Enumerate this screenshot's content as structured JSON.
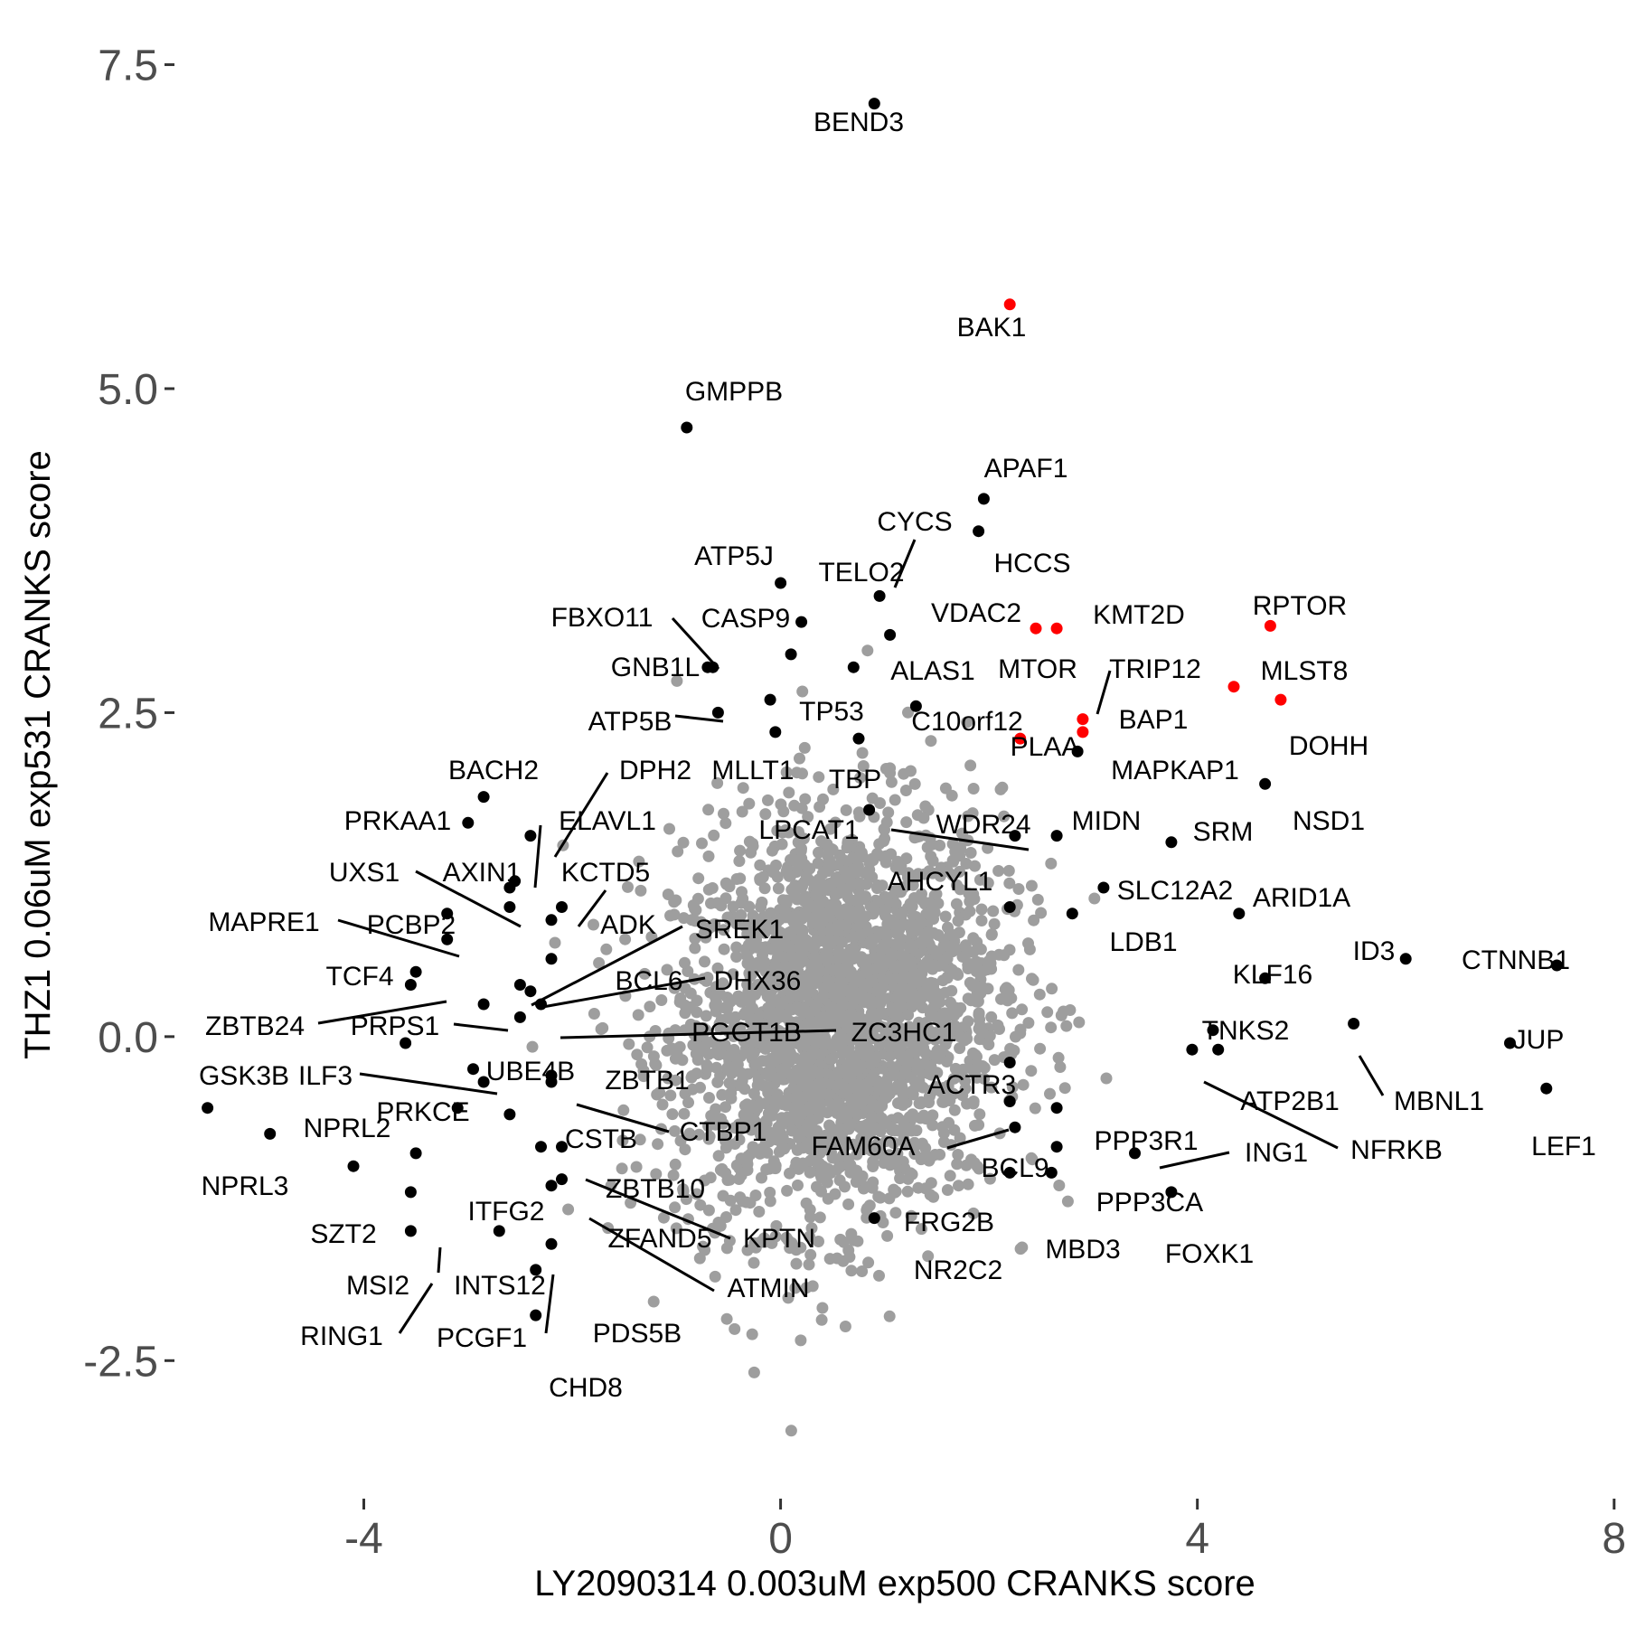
{
  "chart_data": {
    "type": "scatter",
    "title": "",
    "xlabel": "LY2090314 0.003uM exp500 CRANKS score",
    "ylabel": "THZ1 0.06uM exp531 CRANKS score",
    "xlim": [
      -5.8,
      7.95
    ],
    "ylim": [
      -3.3,
      7.72
    ],
    "xticks": [
      {
        "value": -4,
        "label": "-4"
      },
      {
        "value": 0,
        "label": "0"
      },
      {
        "value": 4,
        "label": "4"
      },
      {
        "value": 8,
        "label": "8"
      }
    ],
    "yticks": [
      {
        "value": -2.5,
        "label": "-2.5"
      },
      {
        "value": 0.0,
        "label": "0.0"
      },
      {
        "value": 2.5,
        "label": "2.5"
      },
      {
        "value": 5.0,
        "label": "5.0"
      },
      {
        "value": 7.5,
        "label": "7.5"
      }
    ],
    "grid": false,
    "legend": "none",
    "colors": {
      "background": "#ffffff",
      "highlight": "#ff0000",
      "hit": "#000000",
      "background_points": "#9e9e9e"
    },
    "labeled_points": [
      {
        "gene": "BEND3",
        "x": 0.9,
        "y": 7.2,
        "color": "#000000"
      },
      {
        "gene": "BAK1",
        "x": 2.2,
        "y": 5.65,
        "color": "#ff0000"
      },
      {
        "gene": "GMPPB",
        "x": -0.9,
        "y": 4.7,
        "color": "#000000"
      },
      {
        "gene": "APAF1",
        "x": 1.95,
        "y": 4.15,
        "color": "#000000"
      },
      {
        "gene": "HCCS",
        "x": 1.9,
        "y": 3.9,
        "color": "#000000"
      },
      {
        "gene": "CYCS",
        "x": 0.95,
        "y": 3.4,
        "color": "#000000"
      },
      {
        "gene": "ATP5J",
        "x": 0.0,
        "y": 3.5,
        "color": "#000000"
      },
      {
        "gene": "TELO2",
        "x": 0.2,
        "y": 3.2,
        "color": "#000000"
      },
      {
        "gene": "VDAC2",
        "x": 1.05,
        "y": 3.1,
        "color": "#000000"
      },
      {
        "gene": "KMT2D",
        "x": 2.65,
        "y": 3.15,
        "color": "#ff0000"
      },
      {
        "gene": "MTOR",
        "x": 2.45,
        "y": 3.15,
        "color": "#ff0000"
      },
      {
        "gene": "RPTOR",
        "x": 4.7,
        "y": 3.17,
        "color": "#ff0000"
      },
      {
        "gene": "MLST8",
        "x": 4.35,
        "y": 2.7,
        "color": "#ff0000"
      },
      {
        "gene": "DOHH",
        "x": 4.8,
        "y": 2.6,
        "color": "#ff0000"
      },
      {
        "gene": "FBXO11",
        "x": -0.7,
        "y": 2.85,
        "color": "#000000"
      },
      {
        "gene": "CASP9",
        "x": 0.1,
        "y": 2.95,
        "color": "#000000"
      },
      {
        "gene": "GNB1L",
        "x": -0.65,
        "y": 2.85,
        "color": "#000000"
      },
      {
        "gene": "ALAS1",
        "x": 0.7,
        "y": 2.85,
        "color": "#000000"
      },
      {
        "gene": "TRIP12",
        "x": 2.9,
        "y": 2.45,
        "color": "#ff0000"
      },
      {
        "gene": "BAP1",
        "x": 2.9,
        "y": 2.35,
        "color": "#ff0000"
      },
      {
        "gene": "TP53",
        "x": -0.1,
        "y": 2.6,
        "color": "#000000"
      },
      {
        "gene": "C10orf12",
        "x": 1.3,
        "y": 2.55,
        "color": "#000000"
      },
      {
        "gene": "PLAA",
        "x": 2.3,
        "y": 2.3,
        "color": "#ff0000"
      },
      {
        "gene": "MAPKAP1",
        "x": 2.85,
        "y": 2.2,
        "color": "#000000"
      },
      {
        "gene": "ATP5B",
        "x": -0.6,
        "y": 2.5,
        "color": "#000000"
      },
      {
        "gene": "MLLT1",
        "x": -0.05,
        "y": 2.35,
        "color": "#000000"
      },
      {
        "gene": "TBP",
        "x": 0.75,
        "y": 2.3,
        "color": "#000000"
      },
      {
        "gene": "BACH2",
        "x": -2.85,
        "y": 1.85,
        "color": "#000000"
      },
      {
        "gene": "DPH2",
        "x": -2.4,
        "y": 1.55,
        "color": "#000000"
      },
      {
        "gene": "NSD1",
        "x": 4.65,
        "y": 1.95,
        "color": "#000000"
      },
      {
        "gene": "PRKAA1",
        "x": -3.0,
        "y": 1.65,
        "color": "#000000"
      },
      {
        "gene": "ELAVL1",
        "x": -2.55,
        "y": 1.2,
        "color": "#000000"
      },
      {
        "gene": "LPCAT1",
        "x": 0.85,
        "y": 1.75,
        "color": "#000000"
      },
      {
        "gene": "WDR24",
        "x": 2.25,
        "y": 1.55,
        "color": "#000000"
      },
      {
        "gene": "MIDN",
        "x": 2.65,
        "y": 1.55,
        "color": "#000000"
      },
      {
        "gene": "SRM",
        "x": 3.75,
        "y": 1.5,
        "color": "#000000"
      },
      {
        "gene": "UXS1",
        "x": -2.6,
        "y": 1.0,
        "color": "#000000"
      },
      {
        "gene": "AXIN1",
        "x": -2.6,
        "y": 1.15,
        "color": "#000000"
      },
      {
        "gene": "KCTD5",
        "x": -2.1,
        "y": 1.0,
        "color": "#000000"
      },
      {
        "gene": "AHCYL1",
        "x": 2.2,
        "y": 1.0,
        "color": "#000000"
      },
      {
        "gene": "SLC12A2",
        "x": 3.1,
        "y": 1.15,
        "color": "#000000"
      },
      {
        "gene": "ARID1A",
        "x": 4.4,
        "y": 0.95,
        "color": "#000000"
      },
      {
        "gene": "MAPRE1",
        "x": -3.2,
        "y": 0.75,
        "color": "#000000"
      },
      {
        "gene": "PCBP2",
        "x": -3.2,
        "y": 0.95,
        "color": "#000000"
      },
      {
        "gene": "ADK",
        "x": -2.2,
        "y": 0.9,
        "color": "#000000"
      },
      {
        "gene": "SREK1",
        "x": -2.5,
        "y": 0.4,
        "color": "#000000"
      },
      {
        "gene": "LDB1",
        "x": 2.8,
        "y": 0.95,
        "color": "#000000"
      },
      {
        "gene": "ID3",
        "x": 6.0,
        "y": 0.6,
        "color": "#000000"
      },
      {
        "gene": "CTNNB1",
        "x": 7.45,
        "y": 0.55,
        "color": "#000000"
      },
      {
        "gene": "TCF4",
        "x": -3.5,
        "y": 0.5,
        "color": "#000000"
      },
      {
        "gene": "BCL6",
        "x": -2.2,
        "y": 0.6,
        "color": "#000000"
      },
      {
        "gene": "DHX36",
        "x": -2.4,
        "y": 0.35,
        "color": "#000000"
      },
      {
        "gene": "KLF16",
        "x": 4.65,
        "y": 0.45,
        "color": "#000000"
      },
      {
        "gene": "ZBTB24",
        "x": -3.55,
        "y": 0.4,
        "color": "#000000"
      },
      {
        "gene": "PRPS1",
        "x": -2.85,
        "y": 0.25,
        "color": "#000000"
      },
      {
        "gene": "PGGT1B",
        "x": -2.3,
        "y": 0.25,
        "color": "#000000"
      },
      {
        "gene": "ZC3HC1",
        "x": -2.5,
        "y": 0.15,
        "color": "#000000"
      },
      {
        "gene": "TNKS2",
        "x": 4.15,
        "y": 0.05,
        "color": "#000000"
      },
      {
        "gene": "JUP",
        "x": 7.0,
        "y": -0.05,
        "color": "#000000"
      },
      {
        "gene": "MBNL1",
        "x": 5.5,
        "y": 0.1,
        "color": "#000000"
      },
      {
        "gene": "GSK3B",
        "x": -3.6,
        "y": -0.05,
        "color": "#000000"
      },
      {
        "gene": "ILF3",
        "x": -2.95,
        "y": -0.25,
        "color": "#000000"
      },
      {
        "gene": "UBE4B",
        "x": -2.85,
        "y": -0.35,
        "color": "#000000"
      },
      {
        "gene": "ZBTB1",
        "x": -2.2,
        "y": -0.3,
        "color": "#000000"
      },
      {
        "gene": "ACTR3",
        "x": 2.2,
        "y": -0.2,
        "color": "#000000"
      },
      {
        "gene": "ATP2B1",
        "x": 4.2,
        "y": -0.1,
        "color": "#000000"
      },
      {
        "gene": "NFRKB",
        "x": 3.95,
        "y": -0.1,
        "color": "#000000"
      },
      {
        "gene": "PRKCE",
        "x": -3.1,
        "y": -0.55,
        "color": "#000000"
      },
      {
        "gene": "NPRL2",
        "x": -5.5,
        "y": -0.55,
        "color": "#000000"
      },
      {
        "gene": "CTBP1",
        "x": -2.2,
        "y": -0.35,
        "color": "#000000"
      },
      {
        "gene": "CSTB",
        "x": -2.6,
        "y": -0.6,
        "color": "#000000"
      },
      {
        "gene": "FAM60A",
        "x": 2.2,
        "y": -0.5,
        "color": "#000000"
      },
      {
        "gene": "LEF1",
        "x": 7.35,
        "y": -0.4,
        "color": "#000000"
      },
      {
        "gene": "PPP3R1",
        "x": 2.65,
        "y": -0.55,
        "color": "#000000"
      },
      {
        "gene": "ING1",
        "x": 3.4,
        "y": -0.9,
        "color": "#000000"
      },
      {
        "gene": "NPRL3",
        "x": -4.9,
        "y": -0.75,
        "color": "#000000"
      },
      {
        "gene": "BCL9",
        "x": 2.25,
        "y": -0.7,
        "color": "#000000"
      },
      {
        "gene": "ZBTB10",
        "x": -2.3,
        "y": -0.85,
        "color": "#000000"
      },
      {
        "gene": "PPP3CA",
        "x": 2.65,
        "y": -0.85,
        "color": "#000000"
      },
      {
        "gene": "ITFG2",
        "x": -3.5,
        "y": -0.9,
        "color": "#000000"
      },
      {
        "gene": "FRG2B",
        "x": 2.2,
        "y": -1.05,
        "color": "#000000"
      },
      {
        "gene": "MBD3",
        "x": 2.6,
        "y": -1.05,
        "color": "#000000"
      },
      {
        "gene": "SZT2",
        "x": -4.1,
        "y": -1.0,
        "color": "#000000"
      },
      {
        "gene": "KPTN",
        "x": -2.1,
        "y": -0.85,
        "color": "#000000"
      },
      {
        "gene": "ZFAND5",
        "x": -2.2,
        "y": -1.15,
        "color": "#000000"
      },
      {
        "gene": "FOXK1",
        "x": 3.75,
        "y": -1.2,
        "color": "#000000"
      },
      {
        "gene": "MSI2",
        "x": -3.55,
        "y": -1.2,
        "color": "#000000"
      },
      {
        "gene": "INTS12",
        "x": -2.7,
        "y": -1.5,
        "color": "#000000"
      },
      {
        "gene": "ATMIN",
        "x": -2.1,
        "y": -1.1,
        "color": "#000000"
      },
      {
        "gene": "NR2C2",
        "x": 0.9,
        "y": -1.4,
        "color": "#000000"
      },
      {
        "gene": "RING1",
        "x": -3.55,
        "y": -1.5,
        "color": "#000000"
      },
      {
        "gene": "PCGF1",
        "x": -2.35,
        "y": -1.8,
        "color": "#000000"
      },
      {
        "gene": "PDS5B",
        "x": -2.2,
        "y": -1.6,
        "color": "#000000"
      },
      {
        "gene": "CHD8",
        "x": -2.35,
        "y": -2.15,
        "color": "#000000"
      }
    ]
  }
}
